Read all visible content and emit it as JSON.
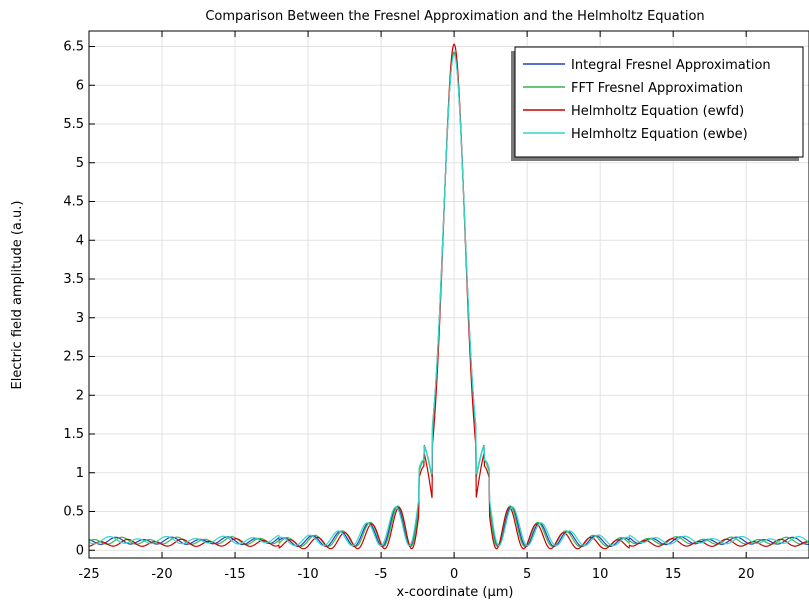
{
  "chart_data": {
    "type": "line",
    "title": "Comparison Between the Fresnel Approximation and the Helmholtz Equation",
    "xlabel": "x-coordinate (µm)",
    "ylabel": "Electric field amplitude (a.u.)",
    "xlim": [
      -25,
      24.3
    ],
    "ylim": [
      -0.1,
      6.7
    ],
    "xticks": [
      -25,
      -20,
      -15,
      -10,
      -5,
      0,
      5,
      10,
      15,
      20
    ],
    "yticks": [
      0,
      0.5,
      1,
      1.5,
      2,
      2.5,
      3,
      3.5,
      4,
      4.5,
      5,
      5.5,
      6,
      6.5
    ],
    "xtick_labels": [
      "-25",
      "-20",
      "-15",
      "-10",
      "-5",
      "0",
      "5",
      "10",
      "15",
      "20"
    ],
    "ytick_labels": [
      "0",
      "0.5",
      "1",
      "1.5",
      "2",
      "2.5",
      "3",
      "3.5",
      "4",
      "4.5",
      "5",
      "5.5",
      "6",
      "6.5"
    ],
    "grid": true,
    "legend_position": "top-right",
    "series": [
      {
        "name": "Integral Fresnel Approximation",
        "color": "#1f3fbf",
        "peak": 6.42,
        "first_min": 0.95,
        "side_peak": 1.45,
        "floor": 0.05,
        "phase": 0.0
      },
      {
        "name": "FFT Fresnel Approximation",
        "color": "#3cb44b",
        "peak": 6.43,
        "first_min": 0.93,
        "side_peak": 1.45,
        "floor": 0.05,
        "phase": 0.06
      },
      {
        "name": "Helmholtz Equation (ewfd)",
        "color": "#cc0000",
        "peak": 6.53,
        "first_min": 0.66,
        "side_peak": 1.38,
        "floor": 0.02,
        "phase": 0.12
      },
      {
        "name": "Helmholtz Equation (ewbe)",
        "color": "#33d6c8",
        "peak": 6.4,
        "first_min": 0.97,
        "side_peak": 1.43,
        "floor": 0.06,
        "phase": -0.06
      }
    ]
  }
}
